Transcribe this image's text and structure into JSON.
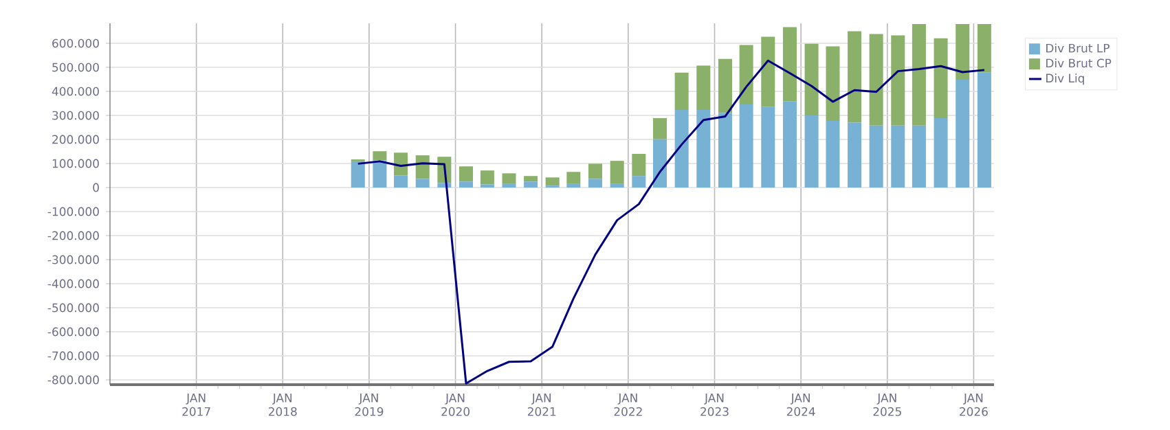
{
  "chart_data": {
    "type": "bar",
    "stacked": true,
    "grid": true,
    "legend": "right",
    "x": [
      "2018-11-15",
      "2019-02-15",
      "2019-05-15",
      "2019-08-15",
      "2019-11-15",
      "2020-02-15",
      "2020-05-15",
      "2020-08-15",
      "2020-11-15",
      "2021-02-15",
      "2021-05-15",
      "2021-08-15",
      "2021-11-15",
      "2022-02-15",
      "2022-05-15",
      "2022-08-15",
      "2022-11-15",
      "2023-02-15",
      "2023-05-15",
      "2023-08-15",
      "2023-11-15",
      "2024-02-15",
      "2024-05-15",
      "2024-08-15",
      "2024-11-15",
      "2025-02-15",
      "2025-05-15",
      "2025-08-15",
      "2025-11-15",
      "2026-02-15"
    ],
    "xlim": [
      "2016-01-01",
      "2026-03-28"
    ],
    "xticks": [
      {
        "value": "2017-01-01",
        "label": "JAN 2017"
      },
      {
        "value": "2018-01-01",
        "label": "JAN 2018"
      },
      {
        "value": "2019-01-01",
        "label": "JAN 2019"
      },
      {
        "value": "2020-01-01",
        "label": "JAN 2020"
      },
      {
        "value": "2021-01-01",
        "label": "JAN 2021"
      },
      {
        "value": "2022-01-01",
        "label": "JAN 2022"
      },
      {
        "value": "2023-01-01",
        "label": "JAN 2023"
      },
      {
        "value": "2024-01-01",
        "label": "JAN 2024"
      },
      {
        "value": "2025-01-01",
        "label": "JAN 2025"
      },
      {
        "value": "2026-01-01",
        "label": "JAN 2026"
      }
    ],
    "ylim": [
      -820000,
      683000
    ],
    "yticks": [
      {
        "value": -800000,
        "label": "-800.000"
      },
      {
        "value": -700000,
        "label": "-700.000"
      },
      {
        "value": -600000,
        "label": "-600.000"
      },
      {
        "value": -500000,
        "label": "-500.000"
      },
      {
        "value": -400000,
        "label": "-400.000"
      },
      {
        "value": -300000,
        "label": "-300.000"
      },
      {
        "value": -200000,
        "label": "-200.000"
      },
      {
        "value": -100000,
        "label": "-100.000"
      },
      0,
      {
        "value": 100000,
        "label": "100.000"
      },
      {
        "value": 200000,
        "label": "200.000"
      },
      {
        "value": 300000,
        "label": "300.000"
      },
      {
        "value": 400000,
        "label": "400.000"
      },
      {
        "value": 500000,
        "label": "500.000"
      },
      {
        "value": 600000,
        "label": "600.000"
      }
    ],
    "series": [
      {
        "name": "Div Brut LP",
        "color": "#77b1d4",
        "values": [
          109000,
          113000,
          50000,
          36000,
          19000,
          25000,
          13000,
          17000,
          25000,
          8000,
          17000,
          36000,
          17000,
          48000,
          201000,
          323000,
          323000,
          310000,
          346000,
          335000,
          358000,
          300000,
          277000,
          270000,
          258000,
          258000,
          258000,
          289000,
          449000,
          478000
        ]
      },
      {
        "name": "Div Brut CP",
        "color": "#8ab06a",
        "values": [
          8000,
          38000,
          95000,
          98000,
          109000,
          63000,
          58000,
          42000,
          23000,
          34000,
          48000,
          63000,
          94000,
          92000,
          88000,
          155000,
          184000,
          225000,
          247000,
          292000,
          309000,
          298000,
          310000,
          380000,
          381000,
          375000,
          422000,
          332000,
          231000,
          202000
        ]
      },
      {
        "name": "Div Liq",
        "type": "line",
        "color": "#000080",
        "values": [
          99000,
          109000,
          90000,
          101000,
          97000,
          -815000,
          -763000,
          -725000,
          -723000,
          -662000,
          -461000,
          -279000,
          -136000,
          -69000,
          65000,
          179000,
          281000,
          296000,
          419000,
          528000,
          476000,
          422000,
          357000,
          405000,
          398000,
          484000,
          493000,
          505000,
          480000,
          489000
        ]
      }
    ]
  }
}
